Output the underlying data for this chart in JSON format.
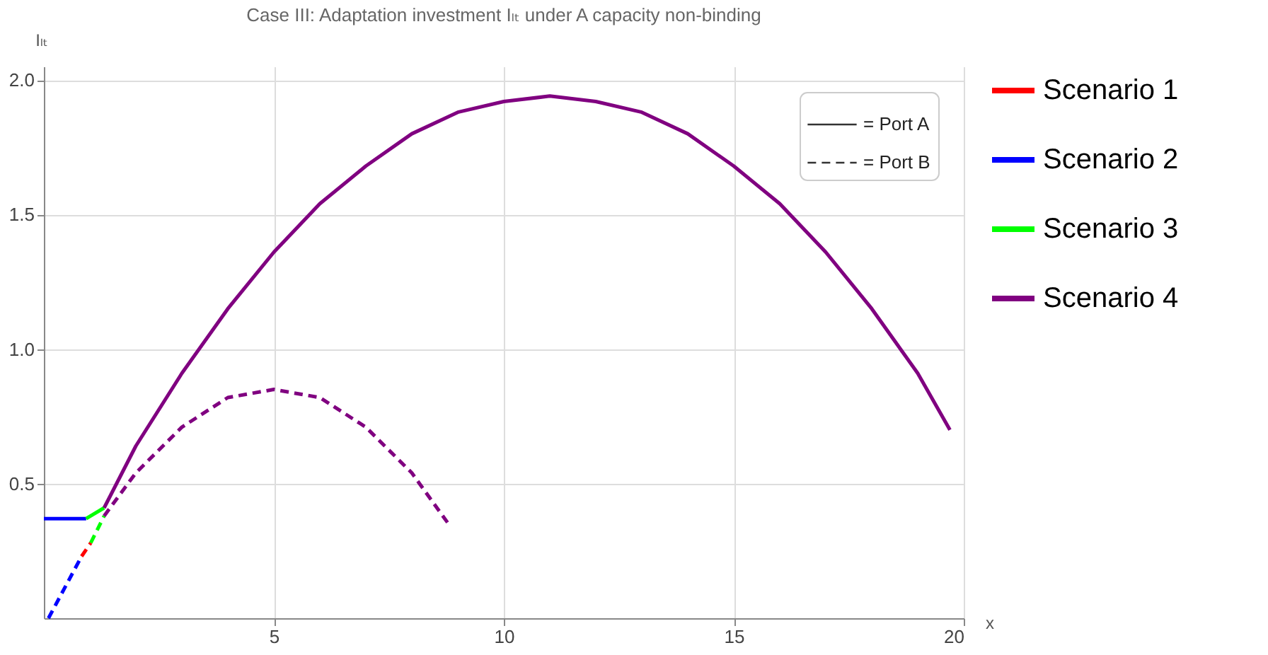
{
  "chart_data": {
    "type": "line",
    "title": "Case III: Adaptation investment Iₗₜ under A capacity non-binding",
    "xlabel": "x",
    "ylabel": "Iₗₜ",
    "xlim": [
      0,
      20
    ],
    "xticks": [
      5,
      10,
      15,
      20
    ],
    "ylim": [
      0,
      2.05
    ],
    "yticks": [
      {
        "value": 0.5,
        "label": "0.5"
      },
      {
        "value": 1,
        "label": "1.0"
      },
      {
        "value": 1.5,
        "label": "1.5"
      },
      {
        "value": 2,
        "label": "2.0"
      }
    ],
    "grid": true,
    "legend": "right",
    "marker": "none",
    "annotations": [
      "= Port A",
      "= Port B"
    ],
    "series": [
      {
        "name": "Scenario 1",
        "color": "#ff0000",
        "line_style": "dashed",
        "x": [
          0.82,
          1.02
        ],
        "values": [
          0.23,
          0.28
        ]
      },
      {
        "name": "Scenario 2",
        "color": "#0000ff",
        "line_style": "solid",
        "x": [
          0,
          0.92
        ],
        "values": [
          0.37,
          0.37
        ]
      },
      {
        "color": "#0000ff",
        "line_style": "dashed",
        "x": [
          0.1,
          0.82
        ],
        "values": [
          0,
          0.23
        ]
      },
      {
        "name": "Scenario 3",
        "color": "#00ff00",
        "line_style": "solid",
        "x": [
          0.92,
          1.31
        ],
        "values": [
          0.37,
          0.41
        ]
      },
      {
        "color": "#00ff00",
        "line_style": "dashed",
        "x": [
          1.02,
          1.31
        ],
        "values": [
          0.28,
          0.38
        ]
      },
      {
        "name": "Scenario 4",
        "color": "#800080",
        "line_style": "solid",
        "x": [
          1.31,
          2,
          3,
          4,
          5,
          6,
          7,
          8,
          9,
          10,
          11,
          12,
          13,
          14,
          15,
          16,
          17,
          18,
          19,
          19.7
        ],
        "values": [
          0.41,
          0.64,
          0.91,
          1.15,
          1.36,
          1.54,
          1.68,
          1.8,
          1.88,
          1.92,
          1.94,
          1.92,
          1.88,
          1.8,
          1.68,
          1.54,
          1.36,
          1.15,
          0.91,
          0.7
        ]
      },
      {
        "color": "#800080",
        "line_style": "dashed",
        "x": [
          1.31,
          2,
          3,
          4,
          5,
          6,
          7,
          8,
          8.8
        ],
        "values": [
          0.38,
          0.54,
          0.71,
          0.82,
          0.85,
          0.82,
          0.71,
          0.54,
          0.35
        ]
      }
    ]
  }
}
